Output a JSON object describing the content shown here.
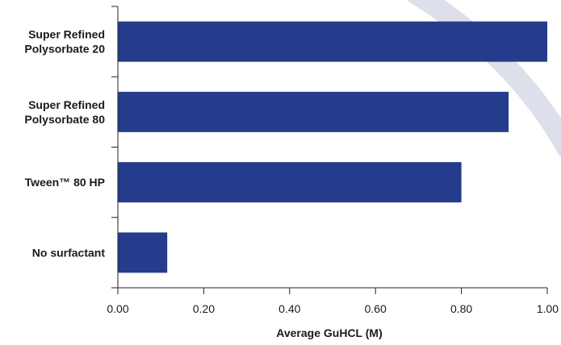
{
  "chart_data": {
    "type": "bar",
    "orientation": "horizontal",
    "categories": [
      [
        "Super Refined",
        "Polysorbate 20"
      ],
      [
        "Super Refined",
        "Polysorbate 80"
      ],
      [
        "Tween™ 80 HP"
      ],
      [
        "No surfactant"
      ]
    ],
    "values": [
      1.0,
      0.91,
      0.8,
      0.115
    ],
    "xlabel": "Average GuHCL (M)",
    "xlim": [
      0,
      1.0
    ],
    "xticks": [
      "0.00",
      "0.20",
      "0.40",
      "0.60",
      "0.80",
      "1.00"
    ],
    "grid": false,
    "colors": {
      "bar": "#253c8c",
      "axis": "#222222",
      "decor_arc": "#dde0ea"
    }
  }
}
